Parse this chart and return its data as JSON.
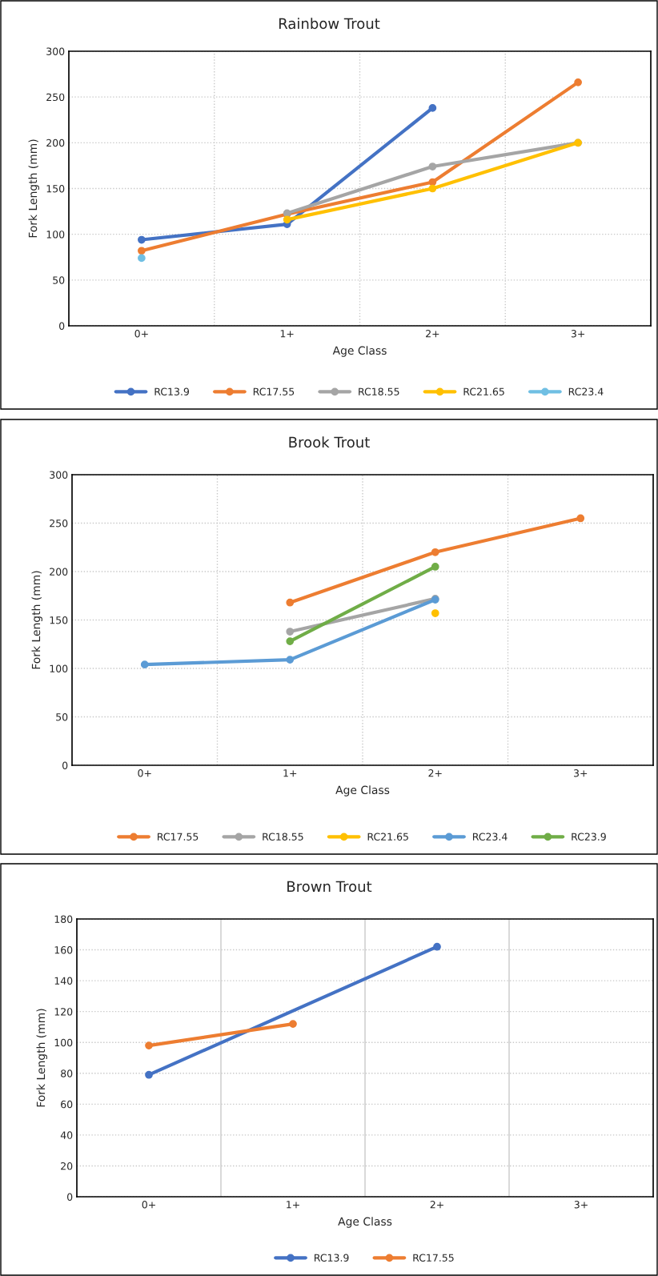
{
  "chart_data": [
    {
      "type": "line",
      "title": "Rainbow Trout",
      "xlabel": "Age Class",
      "ylabel": "Fork Length (mm)",
      "categories": [
        "0+",
        "1+",
        "2+",
        "3+"
      ],
      "ylim": [
        0,
        300
      ],
      "yticks": [
        0,
        50,
        100,
        150,
        200,
        250,
        300
      ],
      "grid": true,
      "legend": "bottom",
      "marker": "circle",
      "line_style": "solid",
      "series": [
        {
          "name": "RC13.9",
          "color": "#4472c4",
          "values": [
            94,
            111,
            238,
            null
          ]
        },
        {
          "name": "RC17.55",
          "color": "#ed7d31",
          "values": [
            82,
            122,
            157,
            266
          ]
        },
        {
          "name": "RC18.55",
          "color": "#a5a5a5",
          "values": [
            null,
            123,
            174,
            200
          ]
        },
        {
          "name": "RC21.65",
          "color": "#ffc000",
          "values": [
            null,
            116,
            150,
            200
          ]
        },
        {
          "name": "RC23.4",
          "color": "#70bfe3",
          "values": [
            74,
            null,
            null,
            null
          ]
        }
      ]
    },
    {
      "type": "line",
      "title": "Brook Trout",
      "xlabel": "Age Class",
      "ylabel": "Fork Length (mm)",
      "categories": [
        "0+",
        "1+",
        "2+",
        "3+"
      ],
      "ylim": [
        0,
        300
      ],
      "yticks": [
        0,
        50,
        100,
        150,
        200,
        250,
        300
      ],
      "grid": true,
      "legend": "bottom",
      "marker": "circle",
      "line_style": "solid",
      "series": [
        {
          "name": "RC17.55",
          "color": "#ed7d31",
          "values": [
            null,
            168,
            220,
            255
          ]
        },
        {
          "name": "RC18.55",
          "color": "#a5a5a5",
          "values": [
            null,
            138,
            172,
            null
          ]
        },
        {
          "name": "RC21.65",
          "color": "#ffc000",
          "values": [
            null,
            null,
            157,
            null
          ]
        },
        {
          "name": "RC23.4",
          "color": "#5b9bd5",
          "values": [
            104,
            109,
            171,
            null
          ]
        },
        {
          "name": "RC23.9",
          "color": "#70ad47",
          "values": [
            null,
            128,
            205,
            null
          ]
        }
      ]
    },
    {
      "type": "line",
      "title": "Brown Trout",
      "xlabel": "Age Class",
      "ylabel": "Fork Length (mm)",
      "categories": [
        "0+",
        "1+",
        "2+",
        "3+"
      ],
      "ylim": [
        0,
        180
      ],
      "yticks": [
        0,
        20,
        40,
        60,
        80,
        100,
        120,
        140,
        160,
        180
      ],
      "grid": true,
      "legend": "bottom",
      "marker": "circle",
      "line_style": "solid",
      "series": [
        {
          "name": "RC13.9",
          "color": "#4472c4",
          "values": [
            79,
            null,
            162,
            null
          ]
        },
        {
          "name": "RC17.55",
          "color": "#ed7d31",
          "values": [
            98,
            112,
            null,
            null
          ]
        }
      ]
    }
  ]
}
